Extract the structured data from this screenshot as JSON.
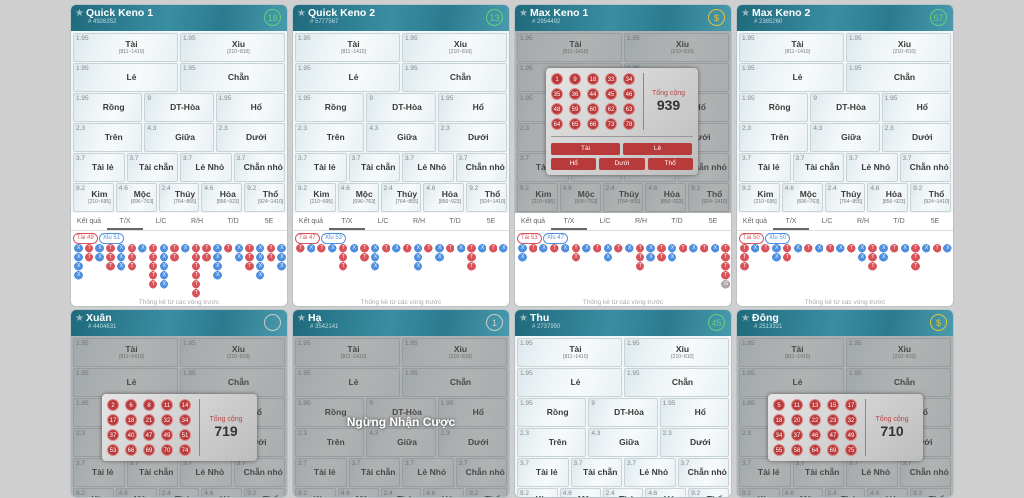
{
  "bet_rows": [
    [
      {
        "odd": "1.95",
        "label": "Tài",
        "range": "[811~1410]"
      },
      {
        "odd": "1.95",
        "label": "Xỉu",
        "range": "[210~810]"
      }
    ],
    [
      {
        "odd": "1.95",
        "label": "Lẻ"
      },
      {
        "odd": "1.95",
        "label": "Chẵn"
      }
    ],
    [
      {
        "odd": "1.95",
        "label": "Rồng"
      },
      {
        "odd": "9",
        "label": "DT-Hòa"
      },
      {
        "odd": "1.95",
        "label": "Hổ"
      }
    ],
    [
      {
        "odd": "2.3",
        "label": "Trên"
      },
      {
        "odd": "4.3",
        "label": "Giữa"
      },
      {
        "odd": "2.3",
        "label": "Dưới"
      }
    ],
    [
      {
        "odd": "3.7",
        "label": "Tài lẻ"
      },
      {
        "odd": "3.7",
        "label": "Tài chẵn"
      },
      {
        "odd": "3.7",
        "label": "Lẻ Nhỏ"
      },
      {
        "odd": "3.7",
        "label": "Chẵn nhỏ"
      }
    ],
    [
      {
        "odd": "9.2",
        "label": "Kim",
        "range": "[210~695]"
      },
      {
        "odd": "4.6",
        "label": "Mộc",
        "range": "[696~763]"
      },
      {
        "odd": "2.4",
        "label": "Thủy",
        "range": "[764~855]"
      },
      {
        "odd": "4.6",
        "label": "Hỏa",
        "range": "[856~923]"
      },
      {
        "odd": "9.2",
        "label": "Thổ",
        "range": "[924~1410]"
      }
    ]
  ],
  "tabs": [
    "Kết quả",
    "T/X",
    "L/C",
    "R/H",
    "T/D",
    "5E"
  ],
  "active_tab": "T/X",
  "stats_note": "Thống kê từ các vòng trước",
  "total_label": "Tổng cộng",
  "colors": {
    "header": "#2b7b8f",
    "tai": "#d9535b",
    "xiu": "#4f8fe0",
    "ball": "#b83a3a",
    "timer": "#5fd37e"
  },
  "games": [
    {
      "name": "Quick Keno 1",
      "id": "# 4926352",
      "timer": "18",
      "timer_color": "#5fd37e",
      "tai": "Tài 49",
      "xiu": "Xỉu 51",
      "road": [
        "XXXX",
        "TT",
        "XX",
        "TTT",
        "XXX",
        "TTT",
        "X",
        "TTTTT",
        "XXXXX",
        "TT",
        "X",
        "TTTTTT",
        "TT",
        "XXXX",
        "T",
        "XX",
        "TTT",
        "XXXX",
        "TT",
        "XXX"
      ]
    },
    {
      "name": "Quick Keno 2",
      "id": "# 5777567",
      "timer": "13",
      "timer_color": "#5fd37e",
      "tai": "Tài 47",
      "xiu": "Xỉu 53",
      "road": [
        "T",
        "X",
        "T",
        "X",
        "TTT",
        "X",
        "TT",
        "XXX",
        "T",
        "X",
        "T",
        "XXX",
        "T",
        "XX",
        "T",
        "X",
        "TTT",
        "X",
        "T",
        "X"
      ]
    },
    {
      "name": "Max Keno 1",
      "id": "# 2954492",
      "timer": "$",
      "timer_color": "#e0c23a",
      "tai": "Tài 53",
      "xiu": "Xỉu 47",
      "road": [
        "XX",
        "T",
        "X",
        "T",
        "X",
        "TT",
        "X",
        "T",
        "XX",
        "T",
        "X",
        "TTT",
        "XX",
        "TT",
        "XX",
        "T",
        "X",
        "T",
        "X",
        "TTTTG"
      ],
      "overlay": {
        "type": "result",
        "numbers": [
          1,
          9,
          18,
          33,
          34,
          35,
          36,
          44,
          45,
          46,
          48,
          59,
          60,
          62,
          63,
          64,
          65,
          66,
          73,
          78
        ],
        "total": "939",
        "results": [
          "Tài",
          "Lẻ",
          "Hổ",
          "Dưới",
          "Thổ"
        ]
      }
    },
    {
      "name": "Max Keno 2",
      "id": "# 2385260",
      "timer": "57",
      "timer_color": "#5fd37e",
      "tai": "Tài 50",
      "xiu": "Xỉu 50",
      "road": [
        "TTT",
        "X",
        "T",
        "XX",
        "TT",
        "X",
        "T",
        "X",
        "T",
        "X",
        "T",
        "XX",
        "TTT",
        "XX",
        "T",
        "X",
        "TTT",
        "X",
        "T",
        "X"
      ]
    },
    {
      "name": "Xuân",
      "id": "# 4404631",
      "timer": "",
      "timer_color": "#cccccc",
      "overlay": {
        "type": "balls",
        "numbers": [
          2,
          6,
          8,
          11,
          14,
          17,
          18,
          21,
          32,
          34,
          37,
          40,
          47,
          49,
          51,
          53,
          66,
          69,
          70,
          74
        ],
        "total": "719"
      }
    },
    {
      "name": "Hạ",
      "id": "# 3542141",
      "timer": "1",
      "timer_color": "#cccccc",
      "overlay": {
        "type": "stopped",
        "text": "Ngừng Nhận Cược"
      }
    },
    {
      "name": "Thu",
      "id": "# 2737950",
      "timer": "45",
      "timer_color": "#5fd37e"
    },
    {
      "name": "Đông",
      "id": "# 2513321",
      "timer": "$",
      "timer_color": "#e0c23a",
      "overlay": {
        "type": "balls",
        "numbers": [
          5,
          11,
          13,
          15,
          17,
          18,
          20,
          22,
          23,
          32,
          34,
          37,
          46,
          47,
          49,
          55,
          58,
          64,
          69,
          75
        ],
        "total": "710"
      }
    }
  ]
}
